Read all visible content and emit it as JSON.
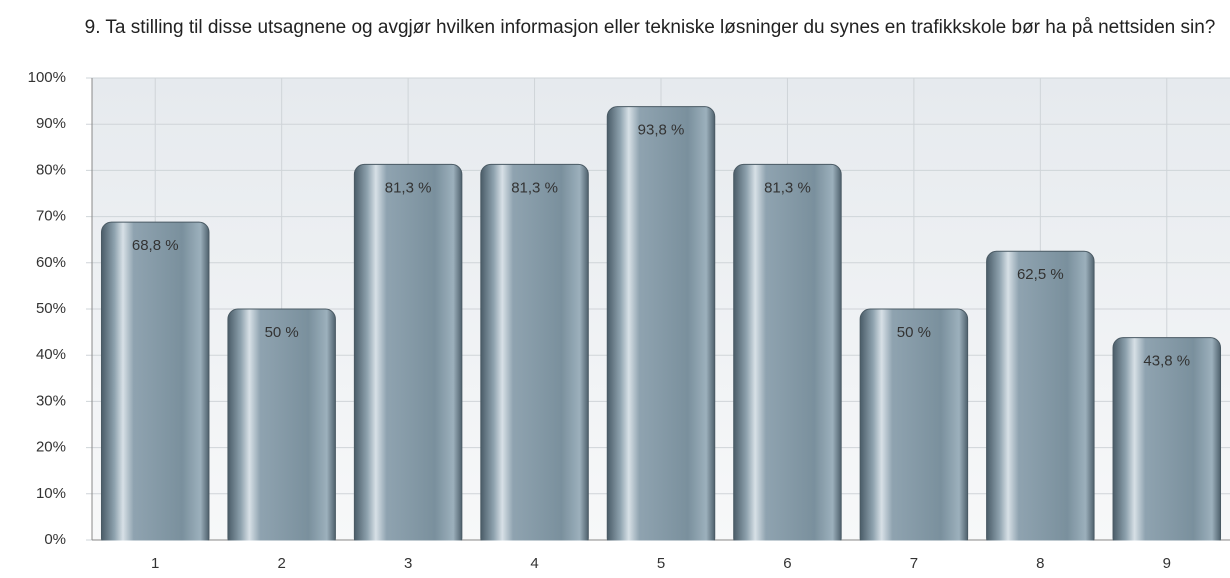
{
  "chart_data": {
    "type": "bar",
    "title": "9. Ta stilling til disse utsagnene og avgjør hvilken informasjon eller tekniske løsninger du synes en trafikkskole bør ha på nettsiden sin?",
    "categories": [
      "1",
      "2",
      "3",
      "4",
      "5",
      "6",
      "7",
      "8",
      "9"
    ],
    "values": [
      68.8,
      50,
      81.3,
      81.3,
      93.8,
      81.3,
      50,
      62.5,
      43.8
    ],
    "value_labels": [
      "68,8 %",
      "50 %",
      "81,3 %",
      "81,3 %",
      "93,8 %",
      "81,3 %",
      "50 %",
      "62,5 %",
      "43,8 %"
    ],
    "color": "#6f8593",
    "ylim": [
      0,
      100
    ],
    "yticks": [
      {
        "value": 0,
        "label": "0%"
      },
      {
        "value": 10,
        "label": "10%"
      },
      {
        "value": 20,
        "label": "20%"
      },
      {
        "value": 30,
        "label": "30%"
      },
      {
        "value": 40,
        "label": "40%"
      },
      {
        "value": 50,
        "label": "50%"
      },
      {
        "value": 60,
        "label": "60%"
      },
      {
        "value": 70,
        "label": "70%"
      },
      {
        "value": 80,
        "label": "80%"
      },
      {
        "value": 90,
        "label": "90%"
      },
      {
        "value": 100,
        "label": "100%"
      }
    ],
    "grid": true
  }
}
